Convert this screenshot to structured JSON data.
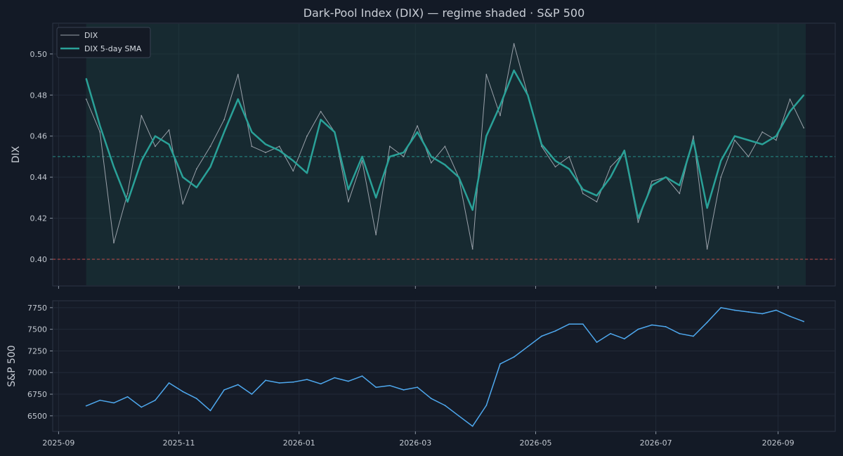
{
  "chart_data": [
    {
      "type": "line",
      "title": "Dark-Pool Index (DIX) — regime shaded · S&P 500",
      "xlabel": "",
      "ylabel": "DIX",
      "xlim": [
        "2025-08-29",
        "2026-09-30"
      ],
      "ylim": [
        0.387,
        0.515
      ],
      "yticks": [
        0.4,
        0.42,
        0.44,
        0.46,
        0.48,
        0.5
      ],
      "legend_position": "top-left",
      "shaded_region": {
        "x": [
          "2025-09-15",
          "2026-09-15"
        ],
        "color": "#1b3d3f"
      },
      "reference_lines": [
        {
          "y": 0.45,
          "color": "#2aa198",
          "style": "dashed"
        },
        {
          "y": 0.4,
          "color": "#d9534f",
          "style": "dashed"
        }
      ],
      "series": [
        {
          "name": "DIX",
          "color": "#9aa1aa",
          "x": [
            "2025-09-15",
            "2025-09-22",
            "2025-09-29",
            "2025-10-06",
            "2025-10-13",
            "2025-10-20",
            "2025-10-27",
            "2025-11-03",
            "2025-11-10",
            "2025-11-17",
            "2025-11-24",
            "2025-12-01",
            "2025-12-08",
            "2025-12-15",
            "2025-12-22",
            "2025-12-29",
            "2026-01-05",
            "2026-01-12",
            "2026-01-19",
            "2026-01-26",
            "2026-02-02",
            "2026-02-09",
            "2026-02-16",
            "2026-02-23",
            "2026-03-02",
            "2026-03-09",
            "2026-03-16",
            "2026-03-23",
            "2026-03-30",
            "2026-04-06",
            "2026-04-13",
            "2026-04-20",
            "2026-04-27",
            "2026-05-04",
            "2026-05-11",
            "2026-05-18",
            "2026-05-25",
            "2026-06-01",
            "2026-06-08",
            "2026-06-15",
            "2026-06-22",
            "2026-06-29",
            "2026-07-06",
            "2026-07-13",
            "2026-07-20",
            "2026-07-27",
            "2026-08-03",
            "2026-08-10",
            "2026-08-17",
            "2026-08-24",
            "2026-08-31",
            "2026-09-07",
            "2026-09-14"
          ],
          "values": [
            0.478,
            0.462,
            0.408,
            0.432,
            0.47,
            0.455,
            0.463,
            0.427,
            0.444,
            0.455,
            0.468,
            0.49,
            0.455,
            0.452,
            0.455,
            0.443,
            0.46,
            0.472,
            0.462,
            0.428,
            0.448,
            0.412,
            0.455,
            0.45,
            0.465,
            0.447,
            0.455,
            0.44,
            0.405,
            0.49,
            0.47,
            0.505,
            0.48,
            0.455,
            0.445,
            0.45,
            0.432,
            0.428,
            0.445,
            0.452,
            0.418,
            0.438,
            0.44,
            0.432,
            0.46,
            0.405,
            0.44,
            0.458,
            0.45,
            0.462,
            0.458,
            0.478,
            0.464
          ]
        },
        {
          "name": "DIX 5-day SMA",
          "color": "#2aa198",
          "x": [
            "2025-09-15",
            "2025-09-22",
            "2025-09-29",
            "2025-10-06",
            "2025-10-13",
            "2025-10-20",
            "2025-10-27",
            "2025-11-03",
            "2025-11-10",
            "2025-11-17",
            "2025-11-24",
            "2025-12-01",
            "2025-12-08",
            "2025-12-15",
            "2025-12-22",
            "2025-12-29",
            "2026-01-05",
            "2026-01-12",
            "2026-01-19",
            "2026-01-26",
            "2026-02-02",
            "2026-02-09",
            "2026-02-16",
            "2026-02-23",
            "2026-03-02",
            "2026-03-09",
            "2026-03-16",
            "2026-03-23",
            "2026-03-30",
            "2026-04-06",
            "2026-04-13",
            "2026-04-20",
            "2026-04-27",
            "2026-05-04",
            "2026-05-11",
            "2026-05-18",
            "2026-05-25",
            "2026-06-01",
            "2026-06-08",
            "2026-06-15",
            "2026-06-22",
            "2026-06-29",
            "2026-07-06",
            "2026-07-13",
            "2026-07-20",
            "2026-07-27",
            "2026-08-03",
            "2026-08-10",
            "2026-08-17",
            "2026-08-24",
            "2026-08-31",
            "2026-09-07",
            "2026-09-14"
          ],
          "values": [
            0.488,
            0.465,
            0.445,
            0.428,
            0.448,
            0.46,
            0.456,
            0.44,
            0.435,
            0.445,
            0.462,
            0.478,
            0.462,
            0.456,
            0.453,
            0.448,
            0.442,
            0.468,
            0.462,
            0.434,
            0.45,
            0.43,
            0.45,
            0.452,
            0.462,
            0.45,
            0.446,
            0.44,
            0.424,
            0.46,
            0.475,
            0.492,
            0.48,
            0.456,
            0.448,
            0.444,
            0.434,
            0.431,
            0.44,
            0.453,
            0.42,
            0.436,
            0.44,
            0.436,
            0.458,
            0.425,
            0.448,
            0.46,
            0.458,
            0.456,
            0.46,
            0.472,
            0.48
          ]
        }
      ]
    },
    {
      "type": "line",
      "title": "",
      "xlabel": "",
      "ylabel": "S&P 500",
      "xlim": [
        "2025-08-29",
        "2026-09-30"
      ],
      "ylim": [
        6320,
        7830
      ],
      "yticks": [
        6500,
        6750,
        7000,
        7250,
        7500,
        7750
      ],
      "xticks": [
        "2025-09",
        "2025-11",
        "2026-01",
        "2026-03",
        "2026-05",
        "2026-07",
        "2026-09"
      ],
      "series": [
        {
          "name": "S&P 500",
          "color": "#4ea8ee",
          "x": [
            "2025-09-15",
            "2025-09-22",
            "2025-09-29",
            "2025-10-06",
            "2025-10-13",
            "2025-10-20",
            "2025-10-27",
            "2025-11-03",
            "2025-11-10",
            "2025-11-17",
            "2025-11-24",
            "2025-12-01",
            "2025-12-08",
            "2025-12-15",
            "2025-12-22",
            "2025-12-29",
            "2026-01-05",
            "2026-01-12",
            "2026-01-19",
            "2026-01-26",
            "2026-02-02",
            "2026-02-09",
            "2026-02-16",
            "2026-02-23",
            "2026-03-02",
            "2026-03-09",
            "2026-03-16",
            "2026-03-23",
            "2026-03-30",
            "2026-04-06",
            "2026-04-13",
            "2026-04-20",
            "2026-04-27",
            "2026-05-04",
            "2026-05-11",
            "2026-05-18",
            "2026-05-25",
            "2026-06-01",
            "2026-06-08",
            "2026-06-15",
            "2026-06-22",
            "2026-06-29",
            "2026-07-06",
            "2026-07-13",
            "2026-07-20",
            "2026-07-27",
            "2026-08-03",
            "2026-08-10",
            "2026-08-17",
            "2026-08-24",
            "2026-08-31",
            "2026-09-07",
            "2026-09-14"
          ],
          "values": [
            6615,
            6680,
            6650,
            6720,
            6600,
            6680,
            6880,
            6780,
            6700,
            6560,
            6800,
            6860,
            6750,
            6910,
            6880,
            6890,
            6920,
            6870,
            6940,
            6900,
            6960,
            6830,
            6850,
            6800,
            6830,
            6700,
            6620,
            6500,
            6380,
            6620,
            7100,
            7180,
            7300,
            7420,
            7480,
            7560,
            7560,
            7350,
            7450,
            7390,
            7500,
            7550,
            7530,
            7450,
            7420,
            7580,
            7750,
            7720,
            7700,
            7680,
            7720,
            7650,
            7590
          ]
        }
      ]
    }
  ]
}
